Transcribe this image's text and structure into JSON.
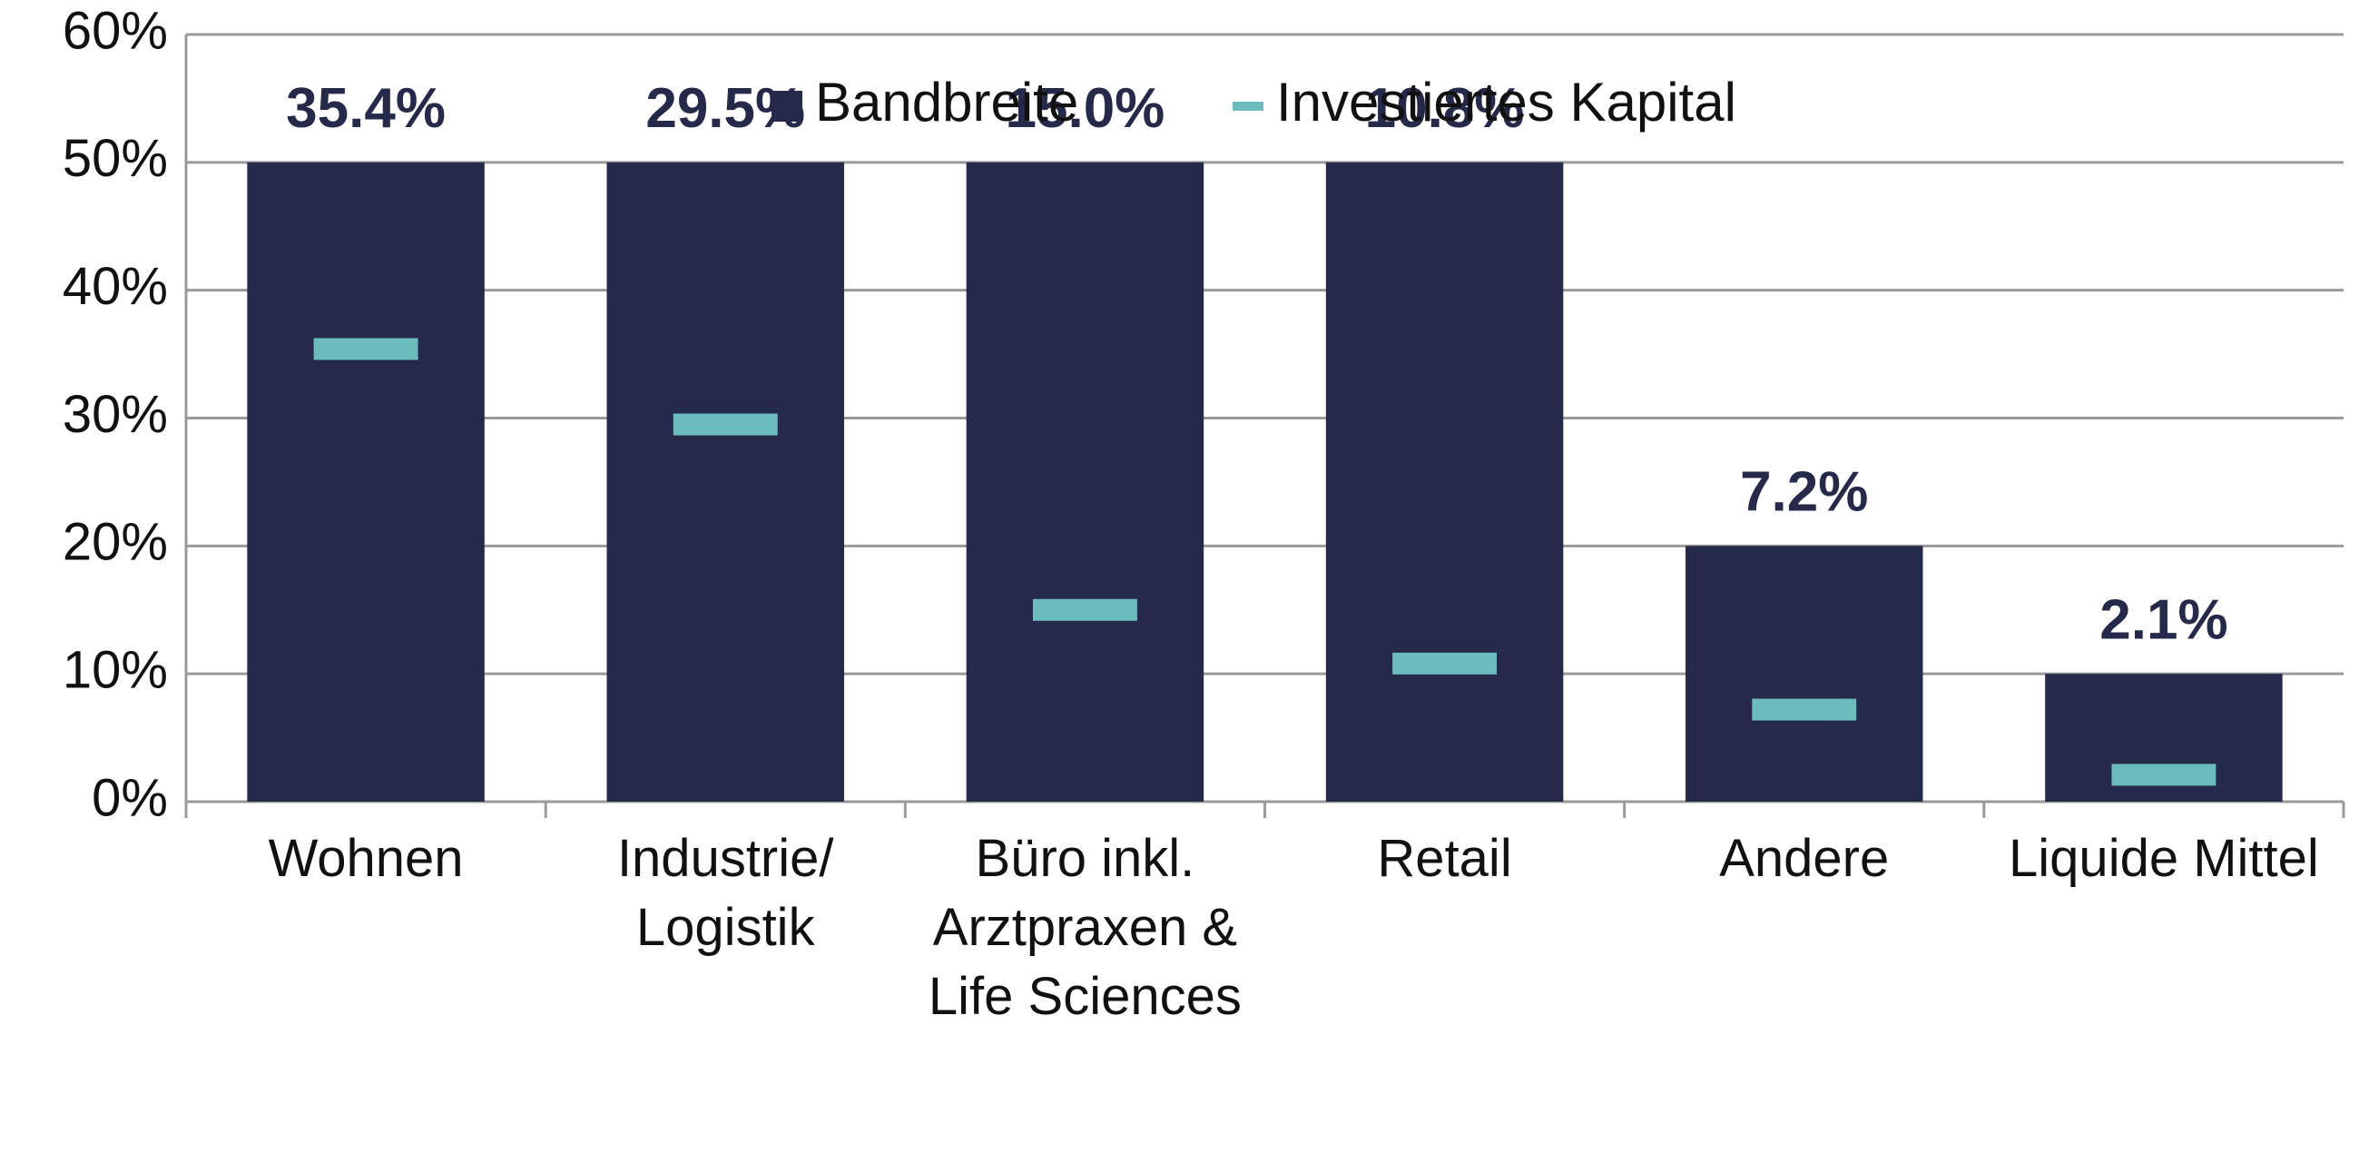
{
  "chart_data": {
    "type": "bar",
    "categories": [
      "Wohnen",
      "Industrie/ Logistik",
      "Büro inkl. Arztpraxen & Life Sciences",
      "Retail",
      "Andere",
      "Liquide Mittel"
    ],
    "series": [
      {
        "name": "Bandbreite",
        "style": "bar",
        "color": "#262a4a",
        "values": [
          50,
          50,
          50,
          50,
          20,
          10
        ]
      },
      {
        "name": "Investiertes Kapital",
        "style": "dash",
        "color": "#6bbdbd",
        "values": [
          35.4,
          29.5,
          15.0,
          10.8,
          7.2,
          2.1
        ],
        "value_labels": [
          "35.4%",
          "29.5%",
          "15.0%",
          "10.8%",
          "7.2%",
          "2.1%"
        ]
      }
    ],
    "ylim": [
      0,
      60
    ],
    "yticks": [
      {
        "value": 0,
        "label": "0%"
      },
      {
        "value": 10,
        "label": "10%"
      },
      {
        "value": 20,
        "label": "20%"
      },
      {
        "value": 30,
        "label": "30%"
      },
      {
        "value": 40,
        "label": "40%"
      },
      {
        "value": 50,
        "label": "50%"
      },
      {
        "value": 60,
        "label": "60%"
      }
    ],
    "grid": true,
    "legend": "top"
  }
}
